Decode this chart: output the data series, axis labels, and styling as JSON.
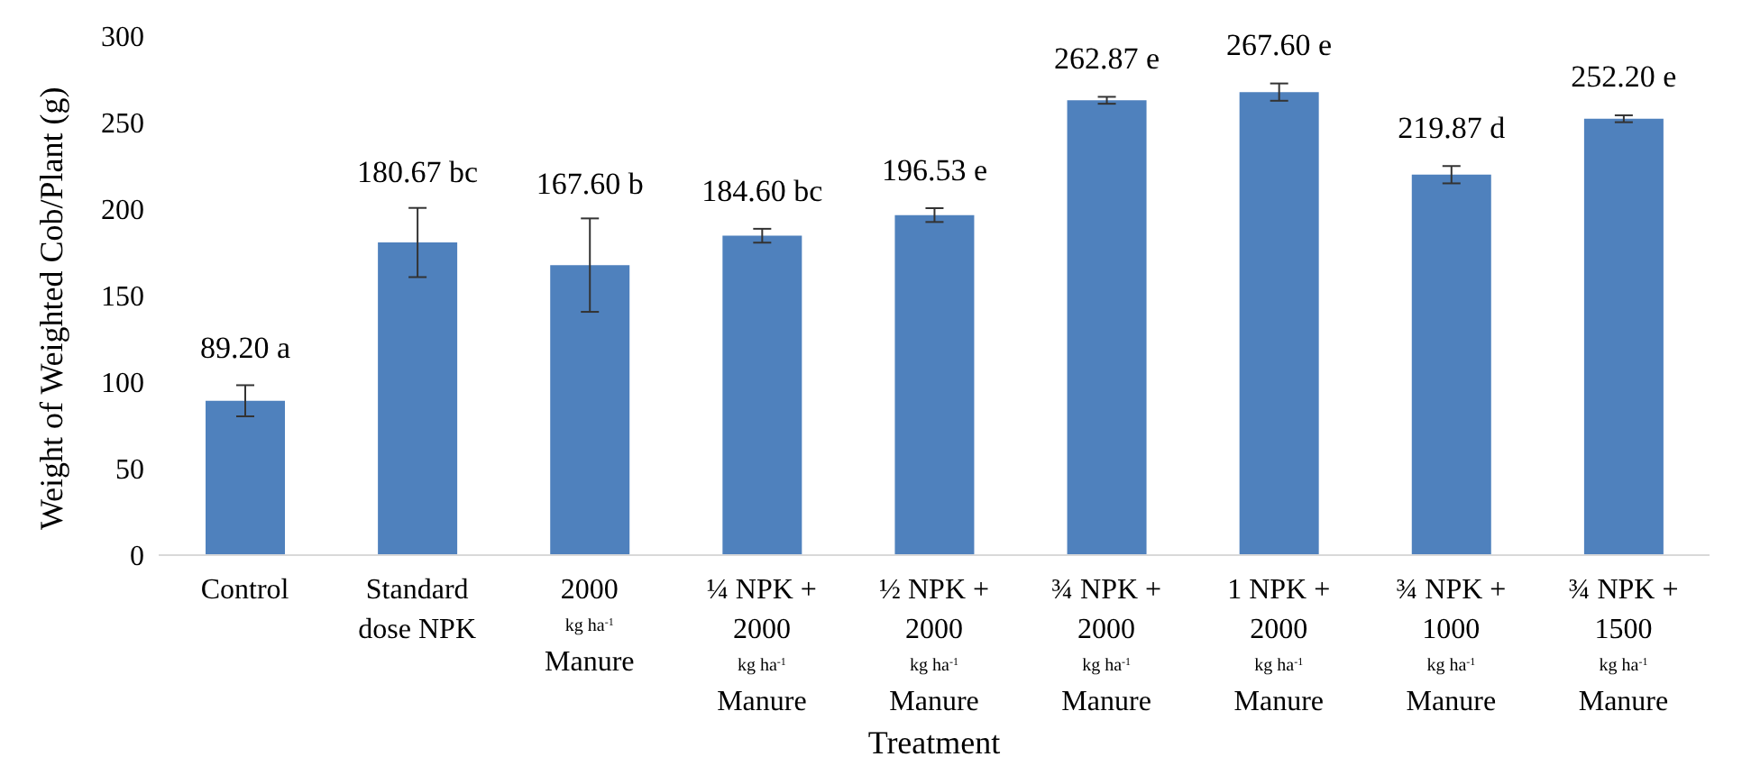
{
  "chart_data": {
    "type": "bar",
    "xlabel": "Treatment",
    "ylabel": "Weight of Weighted Cob/Plant (g)",
    "categories": [
      "Control",
      "Standard\ndose NPK",
      "2000\nkg ha$^{-1}$\nManure",
      "¼  NPK +\n2000\nkg ha$^{-1}$\nManure",
      "½ NPK +\n2000\nkg ha$^{-1}$\nManure",
      "¾ NPK +\n2000\nkg ha$^{-1}$\nManure",
      "1 NPK +\n2000\nkg ha$^{-1}$\nManure",
      "¾ NPK +\n1000\nkg ha$^{-1}$\nManure",
      "¾  NPK +\n1500\nkg ha$^{-1}$\nManure"
    ],
    "values": [
      89.2,
      180.67,
      167.6,
      184.6,
      196.53,
      262.87,
      267.6,
      219.87,
      252.2
    ],
    "errors": [
      9,
      20,
      27,
      4,
      4,
      2,
      5,
      5,
      2
    ],
    "value_labels": [
      "89.20 a",
      "180.67 bc",
      "167.60 b",
      "184.60 bc",
      "196.53 e",
      "262.87 e",
      "267.60 e",
      "219.87 d",
      "252.20 e"
    ],
    "color": "#4f81bd",
    "ylim": [
      0,
      300
    ],
    "yticks": [
      0,
      50,
      100,
      150,
      200,
      250,
      300
    ]
  }
}
